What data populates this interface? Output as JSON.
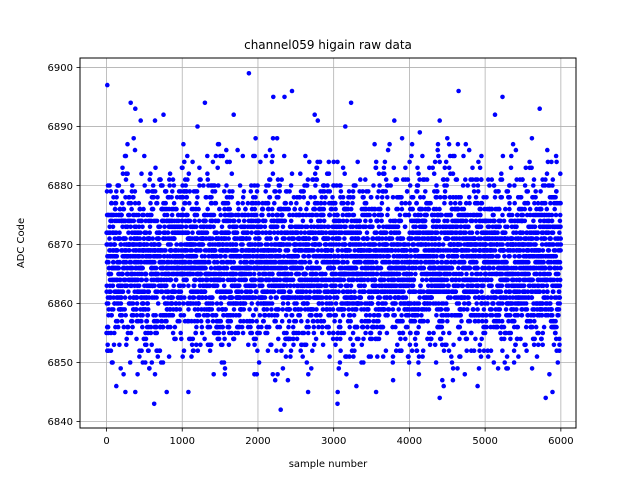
{
  "chart_data": {
    "type": "scatter",
    "title": "channel059 higain raw data",
    "xlabel": "sample number",
    "ylabel": "ADC Code",
    "xlim": [
      -350,
      6200
    ],
    "ylim": [
      6838.9,
      6901.6
    ],
    "x_ticks": [
      0,
      1000,
      2000,
      3000,
      4000,
      5000,
      6000
    ],
    "y_ticks": [
      6840,
      6850,
      6860,
      6870,
      6880,
      6890,
      6900
    ],
    "grid": true,
    "marker_color": "#0000ff",
    "n_points": 6000,
    "value_mean": 6867,
    "value_min": 6842,
    "value_max": 6899,
    "points": [
      [
        10,
        6897
      ],
      [
        1880,
        6899
      ],
      [
        2300,
        6842
      ],
      [
        3050,
        6843
      ],
      [
        4400,
        6844
      ],
      [
        5800,
        6844
      ],
      [
        630,
        6843
      ],
      [
        4650,
        6896
      ],
      [
        2450,
        6896
      ],
      [
        5230,
        6895
      ],
      [
        2350,
        6895
      ],
      [
        1300,
        6894
      ],
      [
        320,
        6894
      ],
      [
        380,
        6893
      ],
      [
        5720,
        6893
      ],
      [
        4400,
        6891
      ],
      [
        3800,
        6891
      ],
      [
        640,
        6891
      ],
      [
        5130,
        6892
      ],
      [
        2750,
        6892
      ],
      [
        130,
        6846
      ],
      [
        250,
        6845
      ],
      [
        3560,
        6845
      ],
      [
        1680,
        6892
      ],
      [
        3000,
        6884
      ],
      [
        4100,
        6852
      ],
      [
        4500,
        6888
      ],
      [
        4900,
        6846
      ],
      [
        5300,
        6849
      ],
      [
        3300,
        6846
      ]
    ]
  }
}
